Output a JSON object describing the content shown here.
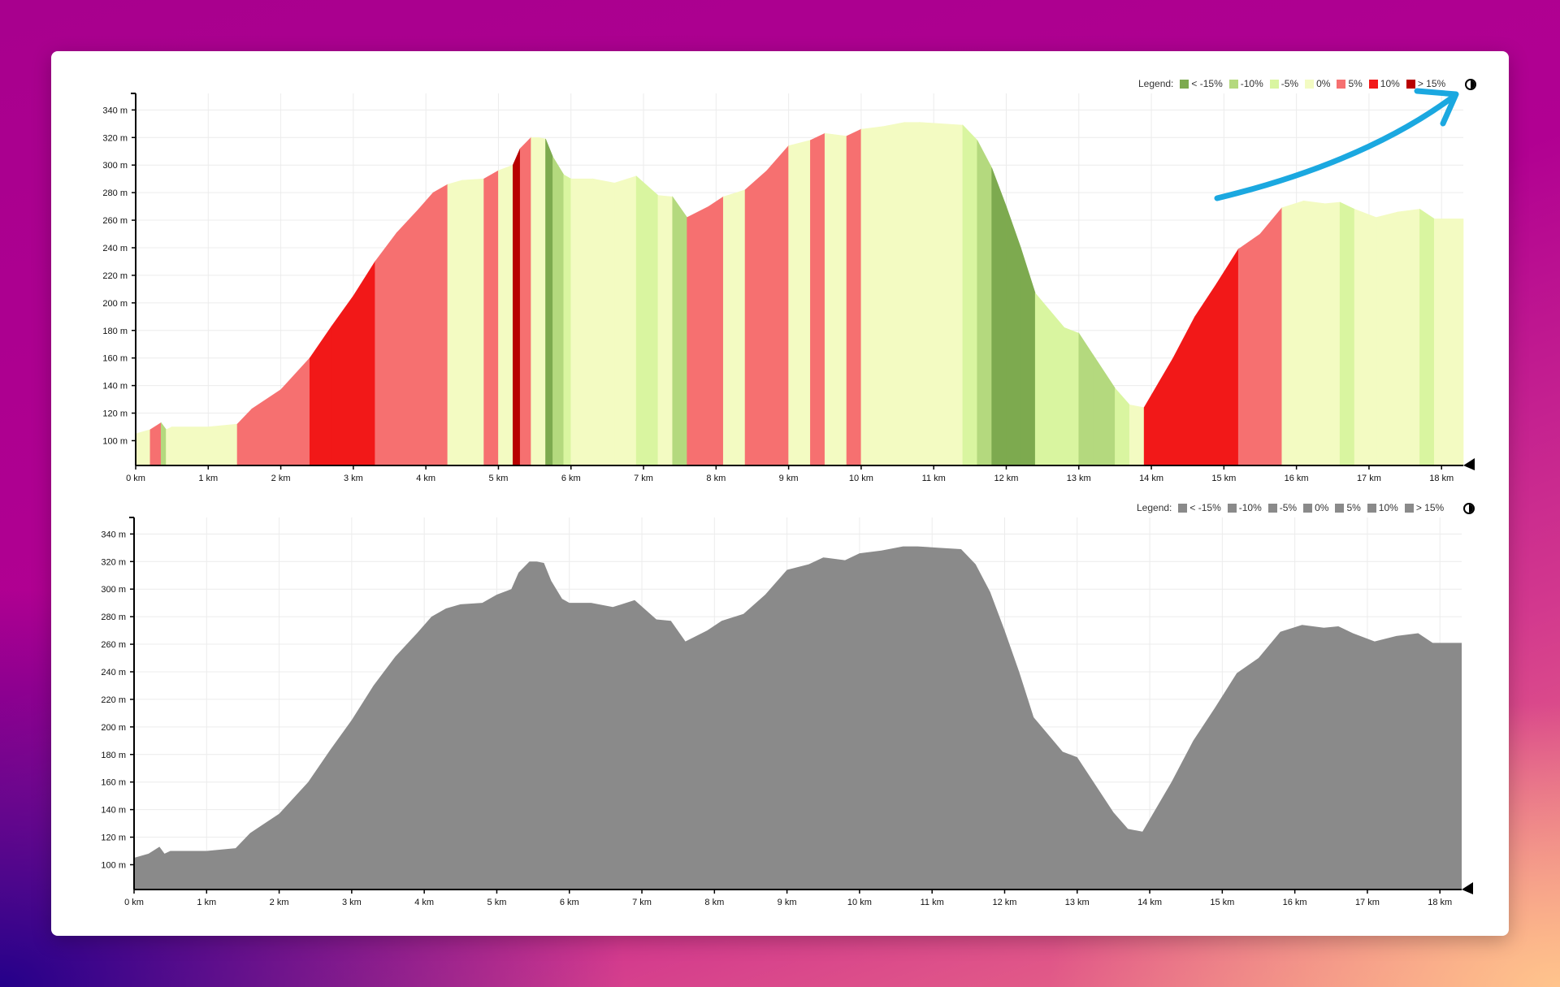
{
  "legend": {
    "label": "Legend:",
    "items": [
      {
        "label": "< -15%",
        "color": "#7daa4f"
      },
      {
        "label": "-10%",
        "color": "#b4d97e"
      },
      {
        "label": "-5%",
        "color": "#d9f5a0"
      },
      {
        "label": "0%",
        "color": "#f3fbc2"
      },
      {
        "label": "5%",
        "color": "#f67070"
      },
      {
        "label": "10%",
        "color": "#f21818"
      },
      {
        "label": "> 15%",
        "color": "#b80000"
      }
    ],
    "grey_color": "#8a8a8a"
  },
  "annotation_color": "#1ba8e0",
  "chart_data": [
    {
      "type": "area",
      "coloring": "slope",
      "xlim": [
        0,
        18.3
      ],
      "ylim": [
        82,
        352
      ],
      "x_ticks": [
        0,
        1,
        2,
        3,
        4,
        5,
        6,
        7,
        8,
        9,
        10,
        11,
        12,
        13,
        14,
        15,
        16,
        17,
        18
      ],
      "x_tick_labels": [
        "0 km",
        "1 km",
        "2 km",
        "3 km",
        "4 km",
        "5 km",
        "6 km",
        "7 km",
        "8 km",
        "9 km",
        "10 km",
        "11 km",
        "12 km",
        "13 km",
        "14 km",
        "15 km",
        "16 km",
        "17 km",
        "18 km"
      ],
      "y_ticks": [
        100,
        120,
        140,
        160,
        180,
        200,
        220,
        240,
        260,
        280,
        300,
        320,
        340
      ],
      "y_tick_labels": [
        "100 m",
        "120 m",
        "140 m",
        "160 m",
        "180 m",
        "200 m",
        "220 m",
        "240 m",
        "260 m",
        "280 m",
        "300 m",
        "320 m",
        "340 m"
      ],
      "grid": true,
      "legend_position": "top-right",
      "x": [
        0,
        0.2,
        0.35,
        0.42,
        0.5,
        1.0,
        1.4,
        1.6,
        2.0,
        2.4,
        2.7,
        3.0,
        3.3,
        3.6,
        3.9,
        4.1,
        4.3,
        4.5,
        4.8,
        5.0,
        5.2,
        5.3,
        5.45,
        5.55,
        5.65,
        5.75,
        5.9,
        6.0,
        6.3,
        6.6,
        6.9,
        7.2,
        7.4,
        7.6,
        7.9,
        8.1,
        8.4,
        8.7,
        9.0,
        9.3,
        9.5,
        9.8,
        10.0,
        10.3,
        10.6,
        10.8,
        11.1,
        11.4,
        11.6,
        11.8,
        12.0,
        12.2,
        12.4,
        12.8,
        13.0,
        13.2,
        13.5,
        13.7,
        13.9,
        14.1,
        14.3,
        14.6,
        14.9,
        15.2,
        15.5,
        15.8,
        16.1,
        16.4,
        16.6,
        16.8,
        17.1,
        17.4,
        17.7,
        17.9,
        18.1,
        18.3
      ],
      "y": [
        105,
        108,
        113,
        108,
        110,
        110,
        112,
        123,
        137,
        160,
        183,
        205,
        230,
        251,
        268,
        280,
        286,
        289,
        290,
        296,
        300,
        312,
        320,
        320,
        319,
        306,
        293,
        290,
        290,
        287,
        292,
        278,
        277,
        262,
        270,
        277,
        282,
        296,
        314,
        318,
        323,
        321,
        326,
        328,
        331,
        331,
        330,
        329,
        318,
        298,
        270,
        240,
        207,
        182,
        178,
        162,
        138,
        126,
        124,
        142,
        160,
        190,
        214,
        239,
        250,
        269,
        274,
        272,
        273,
        268,
        262,
        266,
        268,
        261,
        261,
        261
      ]
    },
    {
      "type": "area",
      "coloring": "grey",
      "xlim": [
        0,
        18.3
      ],
      "ylim": [
        82,
        352
      ],
      "x_ticks": [
        0,
        1,
        2,
        3,
        4,
        5,
        6,
        7,
        8,
        9,
        10,
        11,
        12,
        13,
        14,
        15,
        16,
        17,
        18
      ],
      "x_tick_labels": [
        "0 km",
        "1 km",
        "2 km",
        "3 km",
        "4 km",
        "5 km",
        "6 km",
        "7 km",
        "8 km",
        "9 km",
        "10 km",
        "11 km",
        "12 km",
        "13 km",
        "14 km",
        "15 km",
        "16 km",
        "17 km",
        "18 km"
      ],
      "y_ticks": [
        100,
        120,
        140,
        160,
        180,
        200,
        220,
        240,
        260,
        280,
        300,
        320,
        340
      ],
      "y_tick_labels": [
        "100 m",
        "120 m",
        "140 m",
        "160 m",
        "180 m",
        "200 m",
        "220 m",
        "240 m",
        "260 m",
        "280 m",
        "300 m",
        "320 m",
        "340 m"
      ],
      "grid": true,
      "legend_position": "top-right",
      "x": [
        0,
        0.2,
        0.35,
        0.42,
        0.5,
        1.0,
        1.4,
        1.6,
        2.0,
        2.4,
        2.7,
        3.0,
        3.3,
        3.6,
        3.9,
        4.1,
        4.3,
        4.5,
        4.8,
        5.0,
        5.2,
        5.3,
        5.45,
        5.55,
        5.65,
        5.75,
        5.9,
        6.0,
        6.3,
        6.6,
        6.9,
        7.2,
        7.4,
        7.6,
        7.9,
        8.1,
        8.4,
        8.7,
        9.0,
        9.3,
        9.5,
        9.8,
        10.0,
        10.3,
        10.6,
        10.8,
        11.1,
        11.4,
        11.6,
        11.8,
        12.0,
        12.2,
        12.4,
        12.8,
        13.0,
        13.2,
        13.5,
        13.7,
        13.9,
        14.1,
        14.3,
        14.6,
        14.9,
        15.2,
        15.5,
        15.8,
        16.1,
        16.4,
        16.6,
        16.8,
        17.1,
        17.4,
        17.7,
        17.9,
        18.1,
        18.3
      ],
      "y": [
        105,
        108,
        113,
        108,
        110,
        110,
        112,
        123,
        137,
        160,
        183,
        205,
        230,
        251,
        268,
        280,
        286,
        289,
        290,
        296,
        300,
        312,
        320,
        320,
        319,
        306,
        293,
        290,
        290,
        287,
        292,
        278,
        277,
        262,
        270,
        277,
        282,
        296,
        314,
        318,
        323,
        321,
        326,
        328,
        331,
        331,
        330,
        329,
        318,
        298,
        270,
        240,
        207,
        182,
        178,
        162,
        138,
        126,
        124,
        142,
        160,
        190,
        214,
        239,
        250,
        269,
        274,
        272,
        273,
        268,
        262,
        266,
        268,
        261,
        261,
        261
      ]
    }
  ]
}
